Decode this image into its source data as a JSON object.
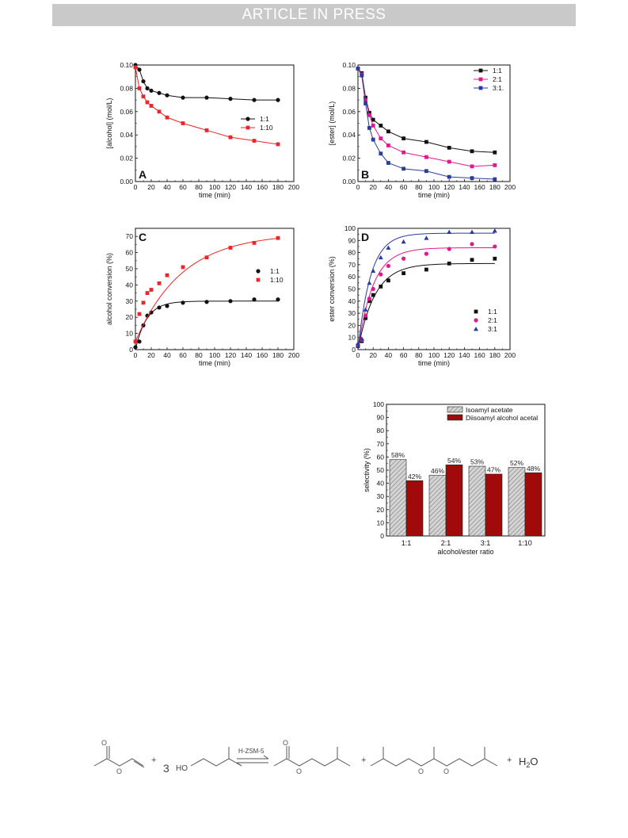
{
  "header": {
    "banner": "ARTICLE IN PRESS"
  },
  "colors": {
    "black": "#111111",
    "red": "#e8262b",
    "magenta": "#e0198c",
    "blue": "#2b3b9c",
    "dark_red": "#a00a0a",
    "hatch_gray": "#b8b8b8"
  },
  "chart_data": [
    {
      "id": "A",
      "type": "line",
      "panel_label": "A",
      "xlabel": "time (min)",
      "ylabel": "[alcohol] (mol/L)",
      "xlim": [
        0,
        200
      ],
      "ylim": [
        0,
        0.1
      ],
      "xticks": [
        0,
        20,
        40,
        60,
        80,
        100,
        120,
        140,
        160,
        180,
        200
      ],
      "yticks": [
        0.0,
        0.02,
        0.04,
        0.06,
        0.08,
        0.1
      ],
      "ytick_labels": [
        "0.00",
        "0.02",
        "0.04",
        "0.06",
        "0.08",
        "0.10"
      ],
      "legend_position": "center-right",
      "series": [
        {
          "name": "1:1",
          "color": "#111111",
          "marker": "circle",
          "x": [
            0,
            5,
            10,
            15,
            20,
            30,
            40,
            60,
            90,
            120,
            150,
            180
          ],
          "y": [
            0.1,
            0.096,
            0.086,
            0.08,
            0.078,
            0.076,
            0.074,
            0.072,
            0.072,
            0.071,
            0.07,
            0.07
          ]
        },
        {
          "name": "1:10",
          "color": "#e8262b",
          "marker": "square",
          "x": [
            0,
            5,
            10,
            15,
            20,
            30,
            40,
            60,
            90,
            120,
            150,
            180
          ],
          "y": [
            0.098,
            0.08,
            0.073,
            0.068,
            0.065,
            0.06,
            0.055,
            0.05,
            0.044,
            0.038,
            0.035,
            0.032
          ]
        }
      ]
    },
    {
      "id": "B",
      "type": "line",
      "panel_label": "B",
      "xlabel": "time (min)",
      "ylabel": "[ester] (mol/L)",
      "xlim": [
        0,
        200
      ],
      "ylim": [
        0,
        0.1
      ],
      "xticks": [
        0,
        20,
        40,
        60,
        80,
        100,
        120,
        140,
        160,
        180,
        200
      ],
      "yticks": [
        0.0,
        0.02,
        0.04,
        0.06,
        0.08,
        0.1
      ],
      "ytick_labels": [
        "0.00",
        "0.02",
        "0.04",
        "0.06",
        "0.08",
        "0.10"
      ],
      "legend_position": "top-right",
      "series": [
        {
          "name": "1:1",
          "color": "#111111",
          "marker": "square",
          "x": [
            0,
            5,
            10,
            15,
            20,
            30,
            40,
            60,
            90,
            120,
            150,
            180
          ],
          "y": [
            0.097,
            0.093,
            0.072,
            0.059,
            0.053,
            0.048,
            0.043,
            0.037,
            0.034,
            0.029,
            0.026,
            0.025
          ]
        },
        {
          "name": "2:1",
          "color": "#e0198c",
          "marker": "square",
          "x": [
            0,
            5,
            10,
            15,
            20,
            30,
            40,
            60,
            90,
            120,
            150,
            180
          ],
          "y": [
            0.097,
            0.092,
            0.07,
            0.057,
            0.048,
            0.037,
            0.031,
            0.025,
            0.021,
            0.017,
            0.013,
            0.014
          ]
        },
        {
          "name": "3:1.",
          "color": "#2b3b9c",
          "marker": "square",
          "x": [
            0,
            5,
            10,
            15,
            20,
            30,
            40,
            60,
            90,
            120,
            150,
            180
          ],
          "y": [
            0.097,
            0.091,
            0.067,
            0.046,
            0.036,
            0.024,
            0.016,
            0.011,
            0.009,
            0.004,
            0.003,
            0.002
          ]
        }
      ]
    },
    {
      "id": "C",
      "type": "scatter",
      "panel_label": "C",
      "xlabel": "time (min)",
      "ylabel": "alcohol conversion (%)",
      "xlim": [
        0,
        200
      ],
      "ylim": [
        0,
        75
      ],
      "xticks": [
        0,
        20,
        40,
        60,
        80,
        100,
        120,
        140,
        160,
        180,
        200
      ],
      "yticks": [
        0,
        10,
        20,
        30,
        40,
        50,
        60,
        70
      ],
      "ytick_labels": [
        "0",
        "10",
        "20",
        "30",
        "40",
        "50",
        "60",
        "70"
      ],
      "legend_position": "center-right",
      "series": [
        {
          "name": "1:1",
          "color": "#111111",
          "marker": "circle",
          "x": [
            0,
            5,
            10,
            15,
            20,
            30,
            40,
            60,
            90,
            120,
            150,
            180
          ],
          "y": [
            1.5,
            5,
            15,
            21,
            23,
            26,
            27,
            29,
            29.5,
            30,
            31,
            31
          ],
          "fit_asymptote": 30,
          "fit_rate": 0.07
        },
        {
          "name": "1:10",
          "color": "#e8262b",
          "marker": "square",
          "x": [
            0,
            5,
            10,
            15,
            20,
            30,
            40,
            60,
            90,
            120,
            150,
            180
          ],
          "y": [
            5,
            22,
            29,
            35,
            37,
            41,
            46,
            51,
            57,
            63,
            66,
            69
          ],
          "fit_asymptote": 72,
          "fit_rate": 0.017,
          "fit_base": 5
        }
      ]
    },
    {
      "id": "D",
      "type": "scatter",
      "panel_label": "D",
      "xlabel": "time (min)",
      "ylabel": "ester conversion (%)",
      "xlim": [
        0,
        200
      ],
      "ylim": [
        0,
        100
      ],
      "xticks": [
        0,
        20,
        40,
        60,
        80,
        100,
        120,
        140,
        160,
        180,
        200
      ],
      "yticks": [
        0,
        10,
        20,
        30,
        40,
        50,
        60,
        70,
        80,
        90,
        100
      ],
      "ytick_labels": [
        "0",
        "10",
        "20",
        "30",
        "40",
        "50",
        "60",
        "70",
        "80",
        "90",
        "100"
      ],
      "legend_position": "bottom-right",
      "series": [
        {
          "name": "1:1",
          "color": "#111111",
          "marker": "square",
          "x": [
            0,
            5,
            10,
            15,
            20,
            30,
            40,
            60,
            90,
            120,
            150,
            180
          ],
          "y": [
            3,
            7,
            26,
            40,
            45,
            52,
            57,
            63,
            66,
            71,
            74,
            75
          ],
          "fit_asymptote": 71,
          "fit_rate": 0.045
        },
        {
          "name": "2:1",
          "color": "#e0198c",
          "marker": "circle",
          "x": [
            0,
            5,
            10,
            15,
            20,
            30,
            40,
            60,
            90,
            120,
            150,
            180
          ],
          "y": [
            4,
            8,
            28,
            42,
            50,
            62,
            69,
            75,
            79,
            83,
            87,
            85
          ],
          "fit_asymptote": 84,
          "fit_rate": 0.05
        },
        {
          "name": "3:1",
          "color": "#2b3b9c",
          "marker": "triangle",
          "x": [
            0,
            5,
            10,
            15,
            20,
            30,
            40,
            60,
            90,
            120,
            150,
            180
          ],
          "y": [
            5,
            9,
            33,
            55,
            65,
            76,
            84,
            89,
            92,
            97,
            97,
            98
          ],
          "fit_asymptote": 96,
          "fit_rate": 0.06
        }
      ]
    },
    {
      "id": "E",
      "type": "bar",
      "xlabel": "alcohol/ester ratio",
      "ylabel": "selectivity (%)",
      "ylim": [
        0,
        100
      ],
      "yticks": [
        0,
        10,
        20,
        30,
        40,
        50,
        60,
        70,
        80,
        90,
        100
      ],
      "ytick_labels": [
        "0",
        "10",
        "20",
        "30",
        "40",
        "50",
        "60",
        "70",
        "80",
        "90",
        "100"
      ],
      "categories": [
        "1:1",
        "2:1",
        "3:1",
        "1:10"
      ],
      "legend_position": "top-right",
      "series": [
        {
          "name": "Isoamyl acetate",
          "color": "#b8b8b8",
          "pattern": "hatch",
          "values": [
            58,
            46,
            53,
            52
          ],
          "labels": [
            "58%",
            "46%",
            "53%",
            "52%"
          ]
        },
        {
          "name": "Diisoamyl alcohol acetal",
          "color": "#a00a0a",
          "pattern": "solid",
          "values": [
            42,
            54,
            47,
            48
          ],
          "labels": [
            "42%",
            "54%",
            "47%",
            "48%"
          ]
        }
      ]
    }
  ],
  "scheme": {
    "coefficient": "3",
    "ho_label": "HO",
    "catalyst": "H-ZSM-5",
    "plus": "+",
    "water_h": "H",
    "water_sub": "2",
    "water_o": "O"
  }
}
